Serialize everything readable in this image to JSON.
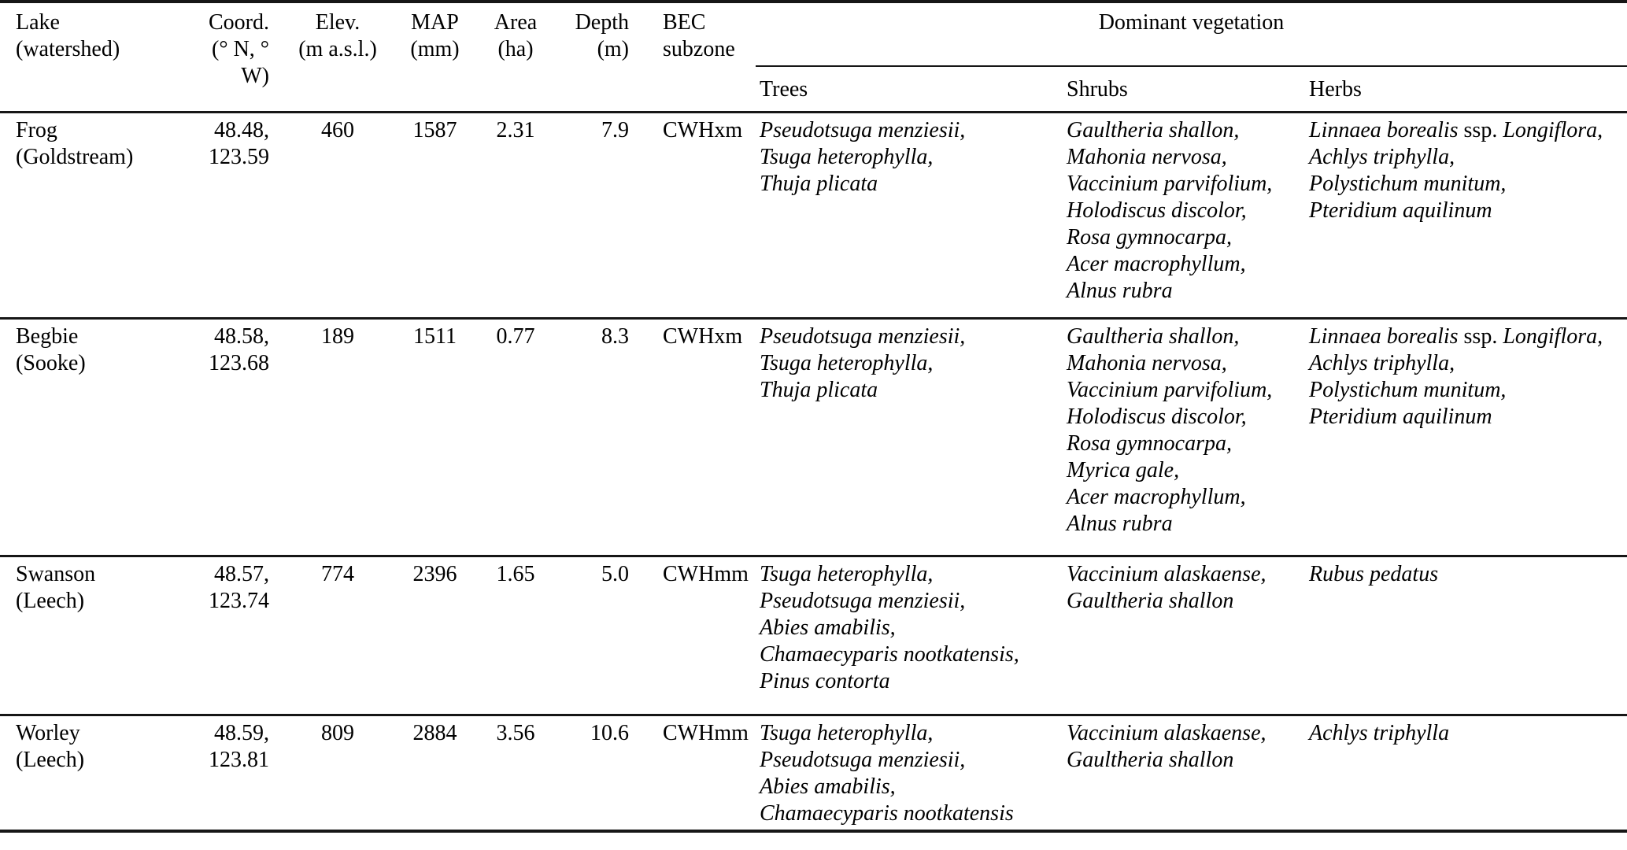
{
  "table": {
    "columns": [
      {
        "line1": "Lake",
        "line2": "(watershed)"
      },
      {
        "line1": "Coord.",
        "line2": "(° N, ° W)"
      },
      {
        "line1": "Elev.",
        "line2": "(m a.s.l.)"
      },
      {
        "line1": "MAP",
        "line2": "(mm)"
      },
      {
        "line1": "Area",
        "line2": "(ha)"
      },
      {
        "line1": "Depth",
        "line2": "(m)"
      },
      {
        "line1": "BEC",
        "line2": "subzone"
      }
    ],
    "vegetation_group": {
      "label": "Dominant vegetation",
      "subcolumns": [
        "Trees",
        "Shrubs",
        "Herbs"
      ]
    },
    "rows": [
      {
        "lake": "Frog",
        "watershed": "(Goldstream)",
        "coord_n": "48.48,",
        "coord_w": "123.59",
        "elev": "460",
        "map": "1587",
        "area": "2.31",
        "depth": "7.9",
        "bec": "CWHxm",
        "trees": [
          "Pseudotsuga menziesii,",
          "Tsuga heterophylla,",
          "Thuja plicata"
        ],
        "shrubs": [
          "Gaultheria shallon,",
          "Mahonia nervosa,",
          "Vaccinium parvifolium,",
          "Holodiscus discolor,",
          "Rosa gymnocarpa,",
          "Acer macrophyllum,",
          "Alnus rubra"
        ],
        "herbs": [
          "Linnaea borealis ssp. Longiflora,",
          "Achlys triphylla,",
          "Polystichum munitum,",
          "Pteridium aquilinum"
        ]
      },
      {
        "lake": "Begbie",
        "watershed": "(Sooke)",
        "coord_n": "48.58,",
        "coord_w": "123.68",
        "elev": "189",
        "map": "1511",
        "area": "0.77",
        "depth": "8.3",
        "bec": "CWHxm",
        "trees": [
          "Pseudotsuga menziesii,",
          "Tsuga heterophylla,",
          "Thuja plicata"
        ],
        "shrubs": [
          "Gaultheria shallon,",
          "Mahonia nervosa,",
          "Vaccinium parvifolium,",
          "Holodiscus discolor,",
          "Rosa gymnocarpa,",
          "Myrica gale,",
          "Acer macrophyllum,",
          "Alnus rubra"
        ],
        "herbs": [
          "Linnaea borealis ssp. Longiflora,",
          "Achlys triphylla,",
          "Polystichum munitum,",
          "Pteridium aquilinum"
        ]
      },
      {
        "lake": "Swanson",
        "watershed": "(Leech)",
        "coord_n": "48.57,",
        "coord_w": "123.74",
        "elev": "774",
        "map": "2396",
        "area": "1.65",
        "depth": "5.0",
        "bec": "CWHmm",
        "trees": [
          "Tsuga heterophylla,",
          "Pseudotsuga menziesii,",
          "Abies amabilis,",
          "Chamaecyparis nootkatensis,",
          "Pinus contorta"
        ],
        "shrubs": [
          "Vaccinium alaskaense,",
          "Gaultheria shallon"
        ],
        "herbs": [
          "Rubus pedatus"
        ]
      },
      {
        "lake": "Worley",
        "watershed": "(Leech)",
        "coord_n": "48.59,",
        "coord_w": "123.81",
        "elev": "809",
        "map": "2884",
        "area": "3.56",
        "depth": "10.6",
        "bec": "CWHmm",
        "trees": [
          "Tsuga heterophylla,",
          "Pseudotsuga menziesii,",
          "Abies amabilis,",
          "Chamaecyparis nootkatensis"
        ],
        "shrubs": [
          "Vaccinium alaskaense,",
          "Gaultheria shallon"
        ],
        "herbs": [
          "Achlys triphylla"
        ]
      }
    ]
  }
}
